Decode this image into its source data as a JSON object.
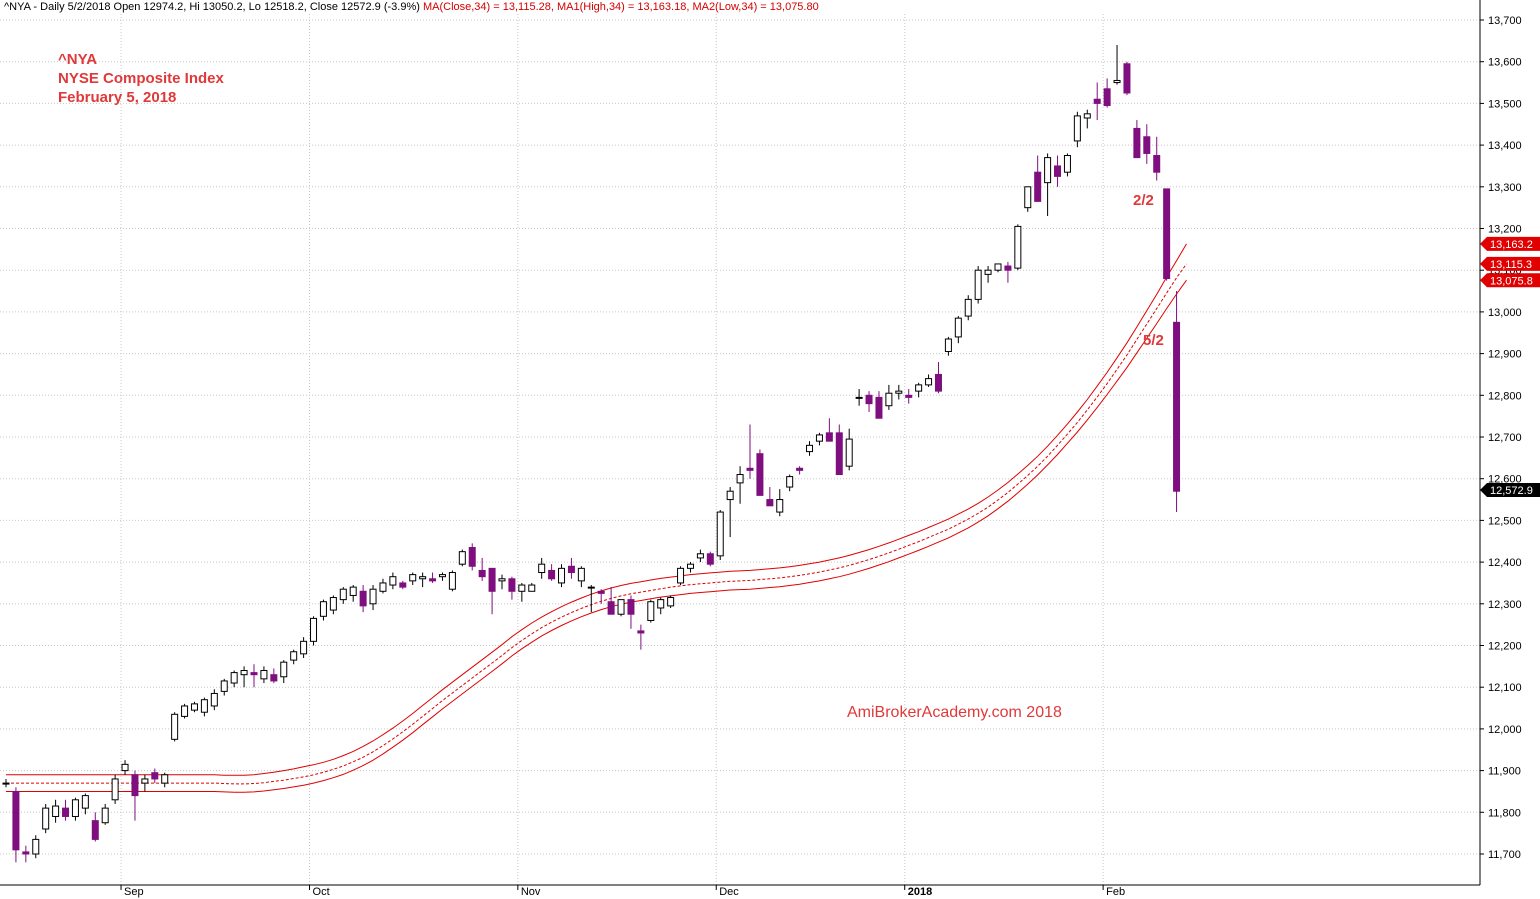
{
  "header": {
    "prefix": "^NYA - Daily 5/2/2018 Open 12974.2, Hi 13050.2, Lo 12518.2, Close 12572.9 (-3.9%)",
    "ma_close": "MA(Close,34) = 13,115.28,",
    "ma_high": "MA1(High,34) = 13,163.18,",
    "ma_low": "MA2(Low,34) = 13,075.80"
  },
  "annotations": {
    "symbol": "^NYA",
    "name": "NYSE Composite Index",
    "date": "February 5, 2018",
    "label_feb2": "2/2",
    "label_feb5": "5/2",
    "watermark": "AmiBroker​Academy.com  2018"
  },
  "colors": {
    "up_candle_fill": "#ffffff",
    "down_candle_fill": "#7f0f7f",
    "ma_band": "#e00000",
    "grid": "#c8c8c8",
    "annotation": "#e0393a",
    "last_price_badge": "#000000",
    "ma_badge": "#e00000"
  },
  "chart_data": {
    "type": "candlestick",
    "title": "^NYA NYSE Composite Index",
    "ylim": [
      11630,
      13730
    ],
    "y_scale": "linear",
    "grid": true,
    "y_ticks": [
      "11,700",
      "11,800",
      "11,900",
      "12,000",
      "12,100",
      "12,200",
      "12,300",
      "12,400",
      "12,500",
      "12,600",
      "12,700",
      "12,800",
      "12,900",
      "13,000",
      "13,100",
      "13,200",
      "13,300",
      "13,400",
      "13,500",
      "13,600",
      "13,700"
    ],
    "y_tick_values": [
      11700,
      11800,
      11900,
      12000,
      12100,
      12200,
      12300,
      12400,
      12500,
      12600,
      12700,
      12800,
      12900,
      13000,
      13100,
      13200,
      13300,
      13400,
      13500,
      13600,
      13700
    ],
    "x_month_labels": [
      {
        "label": "Sep",
        "index": 12,
        "bold": false
      },
      {
        "label": "Oct",
        "index": 31,
        "bold": false
      },
      {
        "label": "Nov",
        "index": 52,
        "bold": false
      },
      {
        "label": "Dec",
        "index": 72,
        "bold": false
      },
      {
        "label": "2018",
        "index": 91,
        "bold": true
      },
      {
        "label": "Feb",
        "index": 111,
        "bold": false
      }
    ],
    "candles": [
      [
        11870,
        11880,
        11860,
        11870
      ],
      [
        11850,
        11860,
        11680,
        11710
      ],
      [
        11705,
        11720,
        11680,
        11700
      ],
      [
        11700,
        11745,
        11690,
        11735
      ],
      [
        11760,
        11820,
        11750,
        11810
      ],
      [
        11790,
        11830,
        11775,
        11815
      ],
      [
        11810,
        11830,
        11780,
        11790
      ],
      [
        11790,
        11835,
        11780,
        11830
      ],
      [
        11810,
        11845,
        11795,
        11840
      ],
      [
        11780,
        11800,
        11730,
        11735
      ],
      [
        11775,
        11820,
        11770,
        11810
      ],
      [
        11830,
        11890,
        11820,
        11880
      ],
      [
        11900,
        11925,
        11890,
        11915
      ],
      [
        11890,
        11900,
        11780,
        11840
      ],
      [
        11870,
        11890,
        11850,
        11880
      ],
      [
        11895,
        11905,
        11870,
        11880
      ],
      [
        11870,
        11895,
        11860,
        11890
      ],
      [
        11975,
        12040,
        11970,
        12035
      ],
      [
        12030,
        12060,
        12025,
        12055
      ],
      [
        12045,
        12065,
        12040,
        12060
      ],
      [
        12040,
        12075,
        12030,
        12070
      ],
      [
        12055,
        12095,
        12045,
        12085
      ],
      [
        12090,
        12120,
        12080,
        12115
      ],
      [
        12110,
        12140,
        12100,
        12135
      ],
      [
        12130,
        12150,
        12100,
        12140
      ],
      [
        12135,
        12155,
        12100,
        12130
      ],
      [
        12120,
        12150,
        12110,
        12140
      ],
      [
        12130,
        12145,
        12110,
        12115
      ],
      [
        12125,
        12165,
        12110,
        12160
      ],
      [
        12165,
        12190,
        12155,
        12185
      ],
      [
        12180,
        12220,
        12170,
        12210
      ],
      [
        12210,
        12270,
        12200,
        12265
      ],
      [
        12270,
        12310,
        12260,
        12305
      ],
      [
        12285,
        12320,
        12275,
        12315
      ],
      [
        12310,
        12340,
        12300,
        12335
      ],
      [
        12320,
        12345,
        12305,
        12340
      ],
      [
        12330,
        12345,
        12280,
        12295
      ],
      [
        12300,
        12345,
        12285,
        12335
      ],
      [
        12330,
        12360,
        12325,
        12350
      ],
      [
        12345,
        12375,
        12335,
        12365
      ],
      [
        12350,
        12355,
        12335,
        12340
      ],
      [
        12355,
        12375,
        12345,
        12370
      ],
      [
        12360,
        12375,
        12340,
        12365
      ],
      [
        12360,
        12375,
        12350,
        12355
      ],
      [
        12365,
        12375,
        12355,
        12370
      ],
      [
        12335,
        12380,
        12330,
        12375
      ],
      [
        12395,
        12430,
        12390,
        12425
      ],
      [
        12435,
        12445,
        12380,
        12390
      ],
      [
        12380,
        12410,
        12355,
        12365
      ],
      [
        12385,
        12385,
        12275,
        12330
      ],
      [
        12355,
        12370,
        12335,
        12360
      ],
      [
        12360,
        12365,
        12310,
        12330
      ],
      [
        12330,
        12350,
        12305,
        12345
      ],
      [
        12330,
        12350,
        12330,
        12345
      ],
      [
        12375,
        12410,
        12360,
        12395
      ],
      [
        12380,
        12395,
        12355,
        12360
      ],
      [
        12350,
        12395,
        12340,
        12385
      ],
      [
        12390,
        12410,
        12360,
        12375
      ],
      [
        12355,
        12390,
        12340,
        12385
      ],
      [
        12340,
        12345,
        12280,
        12340
      ],
      [
        12330,
        12335,
        12300,
        12325
      ],
      [
        12305,
        12340,
        12275,
        12275
      ],
      [
        12275,
        12300,
        12270,
        12310
      ],
      [
        12310,
        12320,
        12240,
        12275
      ],
      [
        12235,
        12250,
        12190,
        12230
      ],
      [
        12260,
        12310,
        12255,
        12305
      ],
      [
        12290,
        12315,
        12275,
        12310
      ],
      [
        12295,
        12320,
        12290,
        12315
      ],
      [
        12350,
        12390,
        12345,
        12385
      ],
      [
        12385,
        12400,
        12375,
        12395
      ],
      [
        12410,
        12430,
        12400,
        12420
      ],
      [
        12420,
        12425,
        12390,
        12395
      ],
      [
        12415,
        12525,
        12405,
        12520
      ],
      [
        12550,
        12580,
        12460,
        12570
      ],
      [
        12590,
        12630,
        12540,
        12610
      ],
      [
        12625,
        12730,
        12600,
        12620
      ],
      [
        12660,
        12670,
        12570,
        12560
      ],
      [
        12550,
        12580,
        12550,
        12535
      ],
      [
        12520,
        12575,
        12510,
        12550
      ],
      [
        12580,
        12610,
        12570,
        12605
      ],
      [
        12625,
        12630,
        12610,
        12620
      ],
      [
        12665,
        12690,
        12655,
        12680
      ],
      [
        12690,
        12710,
        12680,
        12705
      ],
      [
        12710,
        12745,
        12690,
        12690
      ],
      [
        12710,
        12730,
        12610,
        12610
      ],
      [
        12630,
        12720,
        12620,
        12695
      ],
      [
        12795,
        12815,
        12775,
        12795
      ],
      [
        12800,
        12810,
        12760,
        12780
      ],
      [
        12795,
        12810,
        12760,
        12745
      ],
      [
        12775,
        12825,
        12765,
        12805
      ],
      [
        12805,
        12825,
        12790,
        12810
      ],
      [
        12800,
        12815,
        12780,
        12795
      ],
      [
        12810,
        12830,
        12795,
        12825
      ],
      [
        12825,
        12850,
        12820,
        12840
      ],
      [
        12850,
        12880,
        12805,
        12810
      ],
      [
        12905,
        12940,
        12895,
        12935
      ],
      [
        12940,
        12990,
        12925,
        12985
      ],
      [
        12990,
        13040,
        12980,
        13030
      ],
      [
        13030,
        13110,
        13020,
        13100
      ],
      [
        13090,
        13110,
        13070,
        13100
      ],
      [
        13100,
        13110,
        13095,
        13115
      ],
      [
        13110,
        13120,
        13070,
        13100
      ],
      [
        13105,
        13210,
        13100,
        13205
      ],
      [
        13250,
        13300,
        13240,
        13300
      ],
      [
        13335,
        13375,
        13270,
        13265
      ],
      [
        13310,
        13380,
        13230,
        13370
      ],
      [
        13350,
        13375,
        13300,
        13325
      ],
      [
        13335,
        13380,
        13325,
        13375
      ],
      [
        13410,
        13480,
        13395,
        13470
      ],
      [
        13465,
        13485,
        13440,
        13475
      ],
      [
        13510,
        13550,
        13460,
        13500
      ],
      [
        13535,
        13560,
        13490,
        13495
      ],
      [
        13550,
        13640,
        13545,
        13555
      ],
      [
        13595,
        13600,
        13520,
        13525
      ],
      [
        13440,
        13460,
        13390,
        13370
      ],
      [
        13420,
        13450,
        13355,
        13380
      ],
      [
        13375,
        13420,
        13315,
        13335
      ],
      [
        13295,
        13290,
        13075,
        13080
      ],
      [
        12975,
        13050,
        12520,
        12570
      ]
    ],
    "ma_close_34": [
      11870,
      11870,
      11869,
      11868,
      11868,
      11869,
      11871,
      11874,
      11877,
      11881,
      11885,
      11890,
      11896,
      11903,
      11911,
      11921,
      11932,
      11945,
      11960,
      11976,
      11993,
      12011,
      12030,
      12049,
      12068,
      12086,
      12104,
      12122,
      12140,
      12158,
      12176,
      12195,
      12212,
      12228,
      12243,
      12256,
      12268,
      12279,
      12289,
      12298,
      12306,
      12313,
      12319,
      12324,
      12328,
      12332,
      12336,
      12340,
      12343,
      12346,
      12348,
      12350,
      12352,
      12354,
      12355,
      12356,
      12358,
      12360,
      12362,
      12365,
      12368,
      12372,
      12376,
      12381,
      12386,
      12392,
      12399,
      12406,
      12414,
      12422,
      12431,
      12440,
      12449,
      12459,
      12469,
      12479,
      12491,
      12503,
      12517,
      12532,
      12549,
      12567,
      12587,
      12608,
      12630,
      12654,
      12680,
      12707,
      12735,
      12765,
      12796,
      12828,
      12862,
      12897,
      12934,
      12971,
      13008,
      13045,
      13082,
      13115
    ],
    "ma_high_34": [
      11890,
      11890,
      11889,
      11889,
      11889,
      11890,
      11893,
      11896,
      11900,
      11904,
      11909,
      11914,
      11920,
      11927,
      11936,
      11946,
      11958,
      11971,
      11986,
      12002,
      12019,
      12037,
      12056,
      12075,
      12094,
      12112,
      12130,
      12148,
      12166,
      12184,
      12202,
      12221,
      12238,
      12254,
      12268,
      12281,
      12293,
      12304,
      12314,
      12323,
      12331,
      12338,
      12344,
      12349,
      12353,
      12357,
      12361,
      12364,
      12367,
      12370,
      12372,
      12374,
      12376,
      12378,
      12379,
      12380,
      12382,
      12384,
      12386,
      12389,
      12392,
      12396,
      12400,
      12405,
      12410,
      12416,
      12423,
      12430,
      12438,
      12446,
      12455,
      12464,
      12473,
      12483,
      12493,
      12503,
      12515,
      12527,
      12541,
      12556,
      12573,
      12591,
      12611,
      12632,
      12654,
      12678,
      12704,
      12731,
      12760,
      12790,
      12822,
      12855,
      12890,
      12926,
      12964,
      13003,
      13042,
      13083,
      13123,
      13163
    ],
    "ma_low_34": [
      11850,
      11850,
      11849,
      11848,
      11848,
      11849,
      11851,
      11854,
      11857,
      11861,
      11865,
      11870,
      11876,
      11883,
      11891,
      11901,
      11912,
      11925,
      11940,
      11956,
      11973,
      11991,
      12010,
      12029,
      12048,
      12066,
      12084,
      12102,
      12120,
      12138,
      12156,
      12175,
      12192,
      12208,
      12223,
      12236,
      12248,
      12259,
      12269,
      12278,
      12286,
      12293,
      12299,
      12304,
      12308,
      12312,
      12316,
      12319,
      12322,
      12325,
      12327,
      12329,
      12331,
      12333,
      12334,
      12335,
      12337,
      12339,
      12341,
      12344,
      12347,
      12351,
      12355,
      12360,
      12365,
      12371,
      12378,
      12385,
      12393,
      12401,
      12410,
      12419,
      12428,
      12438,
      12448,
      12458,
      12470,
      12482,
      12496,
      12511,
      12528,
      12546,
      12566,
      12587,
      12609,
      12633,
      12658,
      12685,
      12712,
      12741,
      12771,
      12802,
      12834,
      12867,
      12902,
      12937,
      12972,
      13008,
      13043,
      13076
    ],
    "ma_start_index": 20,
    "value_badges": [
      {
        "label": "13,163.2",
        "value": 13163.2,
        "kind": "ma"
      },
      {
        "label": "13,115.3",
        "value": 13115.3,
        "kind": "ma"
      },
      {
        "label": "13,075.8",
        "value": 13075.8,
        "kind": "ma"
      },
      {
        "label": "12,572.9",
        "value": 12572.9,
        "kind": "last"
      }
    ]
  }
}
